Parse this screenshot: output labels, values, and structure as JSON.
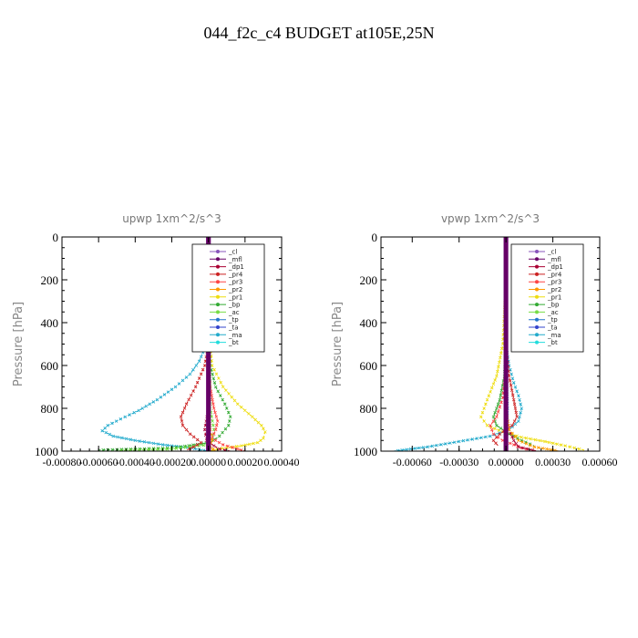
{
  "figure": {
    "title": "044_f2c_c4  BUDGET at105E,25N"
  },
  "legend_entries": [
    {
      "name": "_cl",
      "color": "#8855bb"
    },
    {
      "name": "_mfl",
      "color": "#660066"
    },
    {
      "name": "_dp1",
      "color": "#aa0033"
    },
    {
      "name": "_pr4",
      "color": "#cc2222"
    },
    {
      "name": "_pr3",
      "color": "#ff4444"
    },
    {
      "name": "_pr2",
      "color": "#ff9900"
    },
    {
      "name": "_pr1",
      "color": "#eedd11"
    },
    {
      "name": "_bp",
      "color": "#33aa33"
    },
    {
      "name": "_ac",
      "color": "#77dd44"
    },
    {
      "name": "_tp",
      "color": "#2277cc"
    },
    {
      "name": "_ta",
      "color": "#3344cc"
    },
    {
      "name": "_ma",
      "color": "#22aacc"
    },
    {
      "name": "_bt",
      "color": "#22dddd"
    }
  ],
  "chart_data": [
    {
      "type": "line",
      "title": "upwp   1xm^2/s^3",
      "ylabel": "Pressure [hPa]",
      "xlabel": "",
      "xlim": [
        -0.0008,
        0.0004
      ],
      "ylim": [
        1000,
        0
      ],
      "x_ticks": [
        -0.0008,
        -0.0006,
        -0.0004,
        -0.0002,
        0.0,
        0.0002,
        0.0004
      ],
      "x_tick_labels": [
        "-0.00080",
        "-0.00060",
        "-0.00040",
        "-0.00020",
        "0.00000",
        "0.00020",
        "0.00040"
      ],
      "y_ticks": [
        0,
        200,
        400,
        600,
        800,
        1000
      ],
      "y_tick_labels": [
        "0",
        "200",
        "400",
        "600",
        "800",
        "1000"
      ],
      "legend_position": "upper-right",
      "series": [
        {
          "name": "_ma",
          "color": "#22aacc",
          "x": [
            0,
            0,
            0,
            -2e-05,
            -5e-05,
            -0.0001,
            -0.00018,
            -0.00028,
            -0.00038,
            -0.00048,
            -0.00055,
            -0.00058,
            -0.00052,
            -0.0004,
            -0.00025,
            -0.0001,
            0
          ],
          "y": [
            0,
            200,
            450,
            520,
            580,
            640,
            700,
            760,
            810,
            850,
            880,
            905,
            930,
            950,
            970,
            985,
            1000
          ]
        },
        {
          "name": "_pr1",
          "color": "#eedd11",
          "x": [
            0,
            0,
            2e-05,
            8e-05,
            0.00016,
            0.00024,
            0.00029,
            0.00031,
            0.0003,
            0.00027,
            0.00018,
            5e-05,
            0
          ],
          "y": [
            0,
            400,
            600,
            700,
            780,
            840,
            880,
            910,
            940,
            960,
            975,
            990,
            1000
          ]
        },
        {
          "name": "_bp",
          "color": "#33aa33",
          "x": [
            0,
            0,
            1e-05,
            4e-05,
            9e-05,
            0.00012,
            0.00011,
            6e-05,
            1e-05,
            -0.0002,
            -0.0006
          ],
          "y": [
            0,
            500,
            600,
            700,
            780,
            840,
            880,
            930,
            960,
            985,
            995
          ]
        },
        {
          "name": "_ac",
          "color": "#77dd44",
          "x": [
            0,
            1e-05,
            3e-05,
            2e-05,
            0,
            -0.0002,
            -0.0005
          ],
          "y": [
            0,
            800,
            900,
            950,
            970,
            990,
            998
          ]
        },
        {
          "name": "_pr4",
          "color": "#cc2222",
          "x": [
            0,
            0,
            -2e-05,
            -7e-05,
            -0.00012,
            -0.00015,
            -0.00014,
            -0.0001,
            -4e-05,
            -8e-05,
            -0.00012
          ],
          "y": [
            0,
            500,
            600,
            700,
            780,
            840,
            880,
            920,
            960,
            980,
            995
          ]
        },
        {
          "name": "_pr3",
          "color": "#ff4444",
          "x": [
            0,
            0,
            1e-05,
            3e-05,
            5e-05,
            4e-05,
            2e-05,
            8e-05,
            0.00016,
            0.0002
          ],
          "y": [
            0,
            600,
            700,
            800,
            860,
            900,
            940,
            970,
            990,
            1000
          ]
        },
        {
          "name": "_dp1",
          "color": "#aa0033",
          "x": [
            0,
            0,
            -2e-05,
            -1e-05,
            3e-05,
            6e-05,
            0.00012
          ],
          "y": [
            0,
            800,
            900,
            950,
            975,
            990,
            1000
          ]
        },
        {
          "name": "_pr2",
          "color": "#ff9900",
          "x": [
            0,
            0,
            1e-05,
            2e-05,
            1e-05,
            4e-05
          ],
          "y": [
            0,
            800,
            900,
            950,
            980,
            1000
          ]
        },
        {
          "name": "_tp",
          "color": "#2277cc",
          "x": [
            0,
            0,
            0,
            -5e-06,
            0,
            1e-05
          ],
          "y": [
            0,
            600,
            800,
            900,
            960,
            1000
          ]
        },
        {
          "name": "_cl",
          "color": "#8855bb",
          "x": [
            0,
            0,
            0,
            0,
            0
          ],
          "y": [
            0,
            250,
            500,
            750,
            1000
          ]
        },
        {
          "name": "_mfl",
          "color": "#660066",
          "x": [
            0,
            0,
            0,
            0,
            0
          ],
          "y": [
            0,
            250,
            500,
            750,
            1000
          ]
        }
      ]
    },
    {
      "type": "line",
      "title": "vpwp   1xm^2/s^3",
      "ylabel": "Pressure [hPa]",
      "xlabel": "",
      "xlim": [
        -0.0008,
        0.0006
      ],
      "ylim": [
        1000,
        0
      ],
      "x_ticks": [
        -0.0006,
        -0.0003,
        0.0,
        0.0003,
        0.0006
      ],
      "x_tick_labels": [
        "-0.00060",
        "-0.00030",
        "0.00000",
        "0.00030",
        "0.00060"
      ],
      "y_ticks": [
        0,
        200,
        400,
        600,
        800,
        1000
      ],
      "y_tick_labels": [
        "0",
        "200",
        "400",
        "600",
        "800",
        "1000"
      ],
      "legend_position": "upper-right",
      "series": [
        {
          "name": "_ma",
          "color": "#22aacc",
          "x": [
            0,
            0,
            2e-05,
            5e-05,
            8e-05,
            0.0001,
            8e-05,
            2e-05,
            -0.0001,
            -0.0003,
            -0.0005,
            -0.00072
          ],
          "y": [
            0,
            500,
            600,
            680,
            740,
            800,
            860,
            900,
            930,
            955,
            980,
            1000
          ]
        },
        {
          "name": "_pr1",
          "color": "#eedd11",
          "x": [
            0,
            0,
            -2e-05,
            -6e-05,
            -0.00012,
            -0.00016,
            -0.00012,
            -2e-05,
            0.0001,
            0.00025,
            0.00038,
            0.0005
          ],
          "y": [
            0,
            200,
            500,
            650,
            760,
            840,
            880,
            910,
            935,
            955,
            975,
            995
          ]
        },
        {
          "name": "_bp",
          "color": "#33aa33",
          "x": [
            0,
            0,
            -1e-05,
            -4e-05,
            -8e-05,
            -6e-05,
            2e-05,
            0.0001,
            0.00018
          ],
          "y": [
            0,
            500,
            650,
            760,
            840,
            880,
            920,
            950,
            975
          ]
        },
        {
          "name": "_pr4",
          "color": "#cc2222",
          "x": [
            0,
            0,
            2e-05,
            5e-05,
            7e-05,
            4e-05,
            -4e-05,
            -8e-05,
            -5e-05
          ],
          "y": [
            0,
            500,
            650,
            760,
            840,
            880,
            920,
            950,
            975
          ]
        },
        {
          "name": "_pr3",
          "color": "#ff4444",
          "x": [
            0,
            0,
            -2e-05,
            -6e-05,
            -0.0001,
            -8e-05,
            -2e-05,
            5e-05,
            0.0001,
            0.00016
          ],
          "y": [
            0,
            600,
            750,
            840,
            880,
            920,
            950,
            970,
            985,
            995
          ]
        },
        {
          "name": "_dp1",
          "color": "#aa0033",
          "x": [
            0,
            0,
            2e-05,
            5e-05,
            8e-05,
            0.0002
          ],
          "y": [
            0,
            800,
            900,
            950,
            980,
            1000
          ]
        },
        {
          "name": "_pr2",
          "color": "#ff9900",
          "x": [
            0,
            0,
            2e-05,
            8e-05,
            0.00018,
            0.00034
          ],
          "y": [
            0,
            800,
            900,
            950,
            980,
            1000
          ]
        },
        {
          "name": "_tp",
          "color": "#2277cc",
          "x": [
            0,
            0,
            1e-05,
            0,
            -1e-05
          ],
          "y": [
            0,
            600,
            800,
            950,
            1000
          ]
        },
        {
          "name": "_cl",
          "color": "#8855bb",
          "x": [
            0,
            0,
            0,
            0,
            0
          ],
          "y": [
            0,
            250,
            500,
            750,
            1000
          ]
        },
        {
          "name": "_mfl",
          "color": "#660066",
          "x": [
            0,
            0,
            0,
            0,
            0
          ],
          "y": [
            0,
            250,
            500,
            750,
            1000
          ]
        }
      ]
    }
  ]
}
